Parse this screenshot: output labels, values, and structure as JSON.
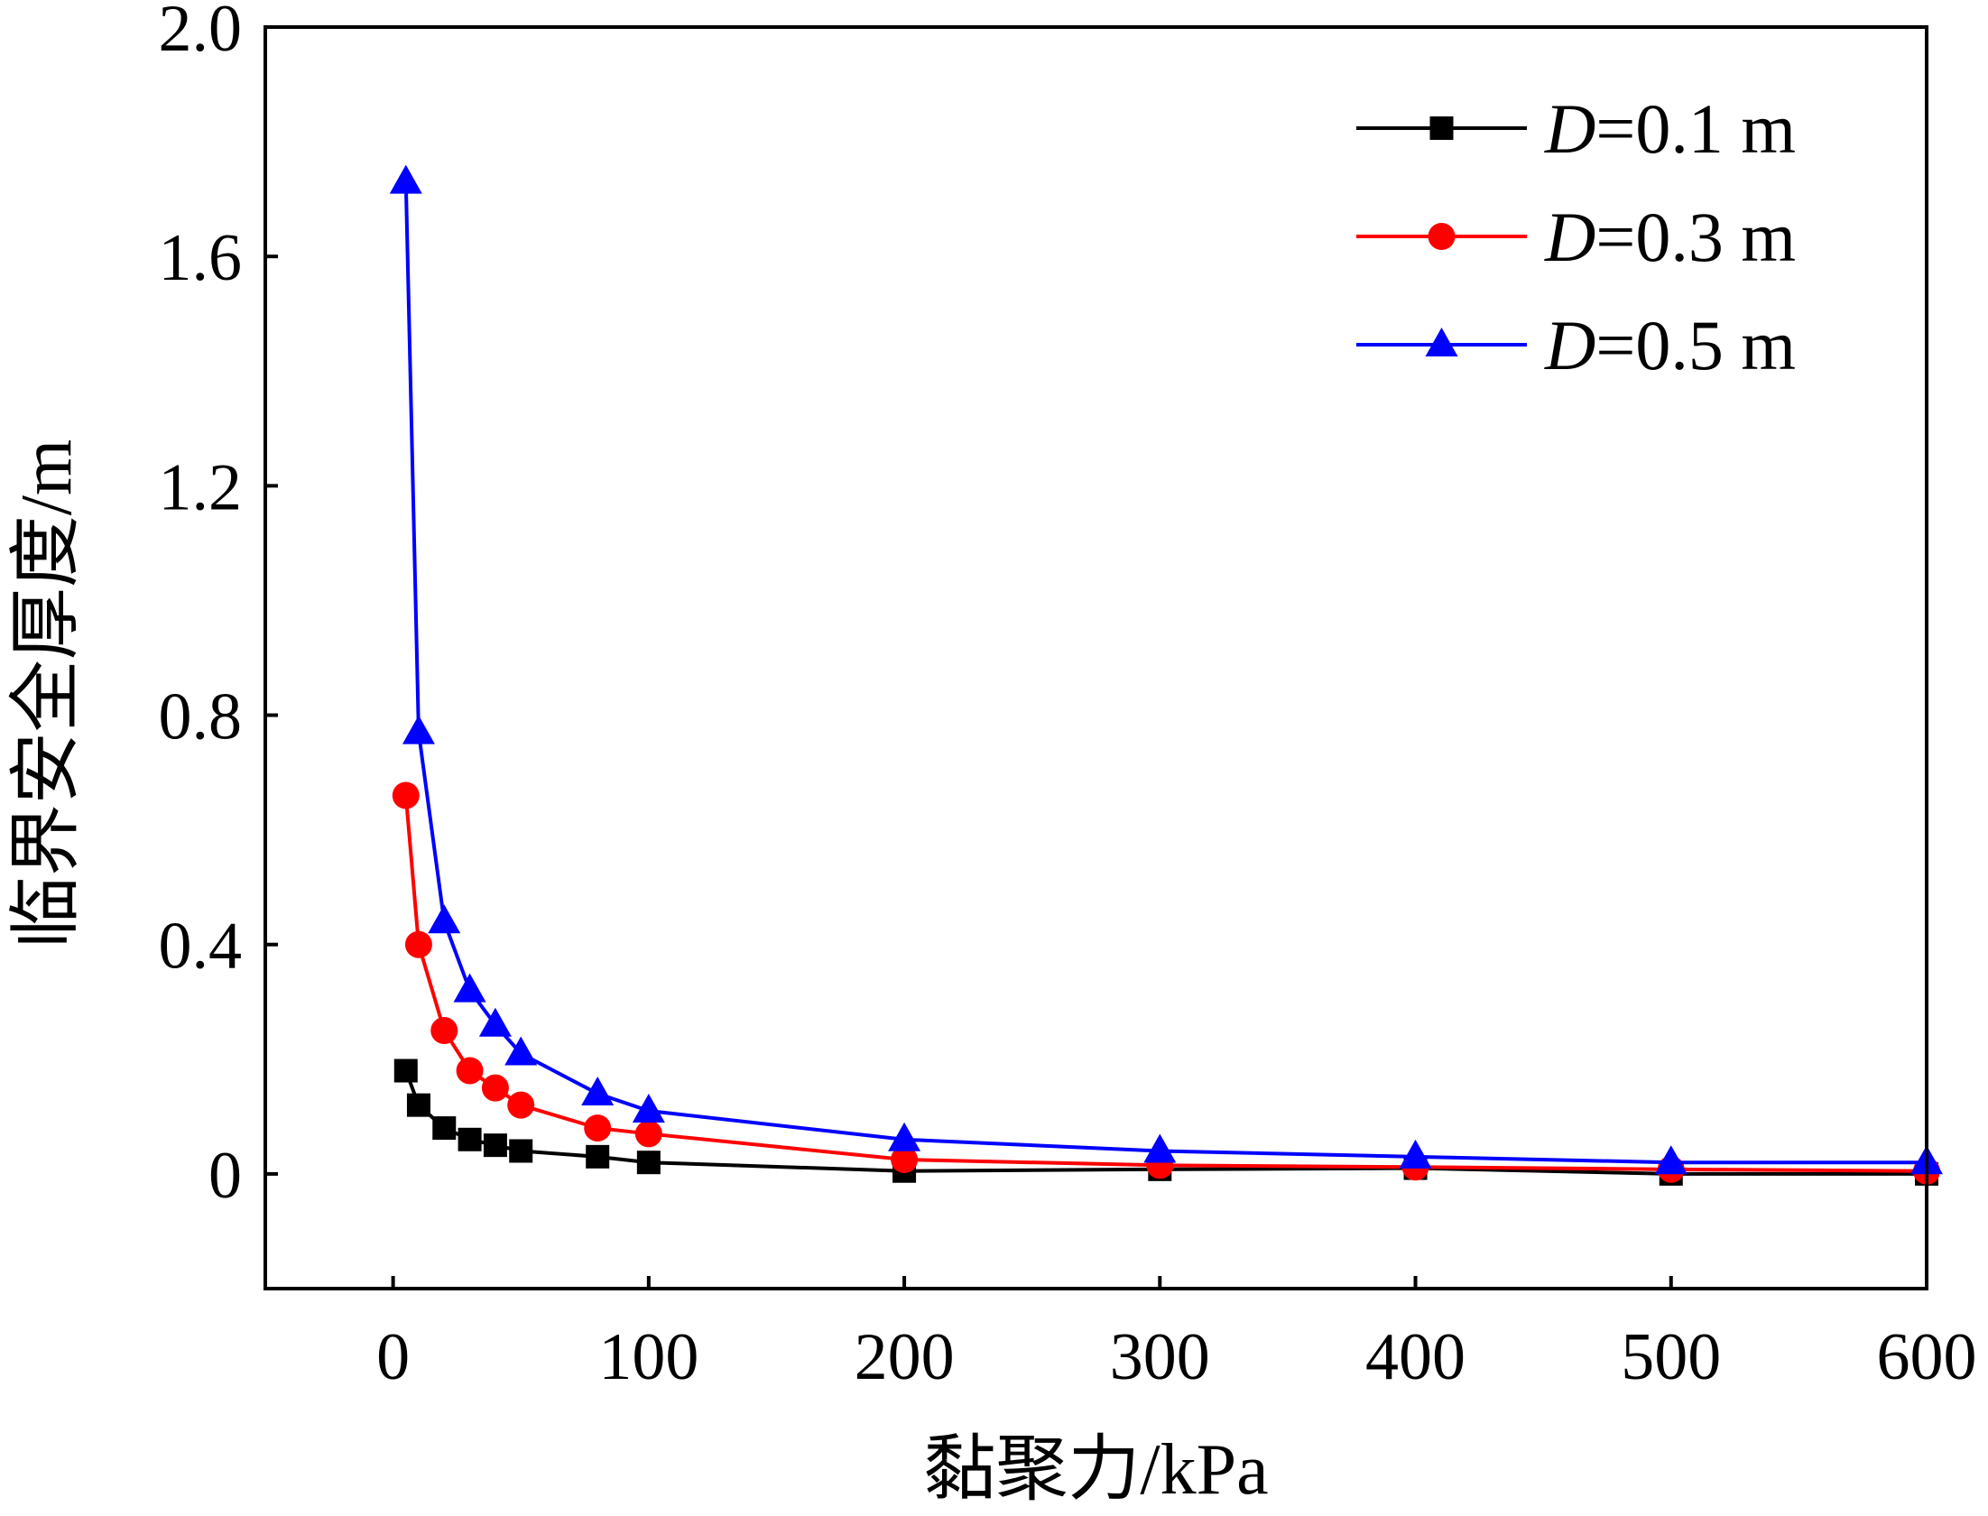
{
  "chart_data": {
    "type": "line",
    "xlabel": "黏聚力/kPa",
    "ylabel": "临界安全厚度/m",
    "xlim": [
      -50,
      600
    ],
    "ylim": [
      -0.2,
      2.0
    ],
    "x_ticks": [
      0,
      100,
      200,
      300,
      400,
      500,
      600
    ],
    "y_ticks": [
      0,
      0.4,
      0.8,
      1.2,
      1.6,
      2.0
    ],
    "x_tick_labels": [
      "0",
      "100",
      "200",
      "300",
      "400",
      "500",
      "600"
    ],
    "y_tick_labels": [
      "0",
      "0.4",
      "0.8",
      "1.2",
      "1.6",
      "2.0"
    ],
    "grid": false,
    "legend_position": "top-right",
    "x": [
      5,
      10,
      20,
      30,
      40,
      50,
      80,
      100,
      200,
      300,
      400,
      500,
      600
    ],
    "series": [
      {
        "name": "D=0.1 m",
        "legend_var": "D",
        "legend_rest": "=0.1 m",
        "color": "#000000",
        "marker": "square",
        "values": [
          0.18,
          0.12,
          0.08,
          0.06,
          0.05,
          0.04,
          0.03,
          0.02,
          0.005,
          0.008,
          0.01,
          0.0,
          0.0
        ]
      },
      {
        "name": "D=0.3 m",
        "legend_var": "D",
        "legend_rest": "=0.3 m",
        "color": "#ff0000",
        "marker": "circle",
        "values": [
          0.66,
          0.4,
          0.25,
          0.18,
          0.15,
          0.12,
          0.08,
          0.07,
          0.025,
          0.015,
          0.012,
          0.008,
          0.005
        ]
      },
      {
        "name": "D=0.5 m",
        "legend_var": "D",
        "legend_rest": "=0.5 m",
        "color": "#0000ff",
        "marker": "triangle",
        "values": [
          1.73,
          0.77,
          0.44,
          0.32,
          0.26,
          0.21,
          0.14,
          0.11,
          0.06,
          0.04,
          0.03,
          0.02,
          0.02
        ]
      }
    ]
  }
}
